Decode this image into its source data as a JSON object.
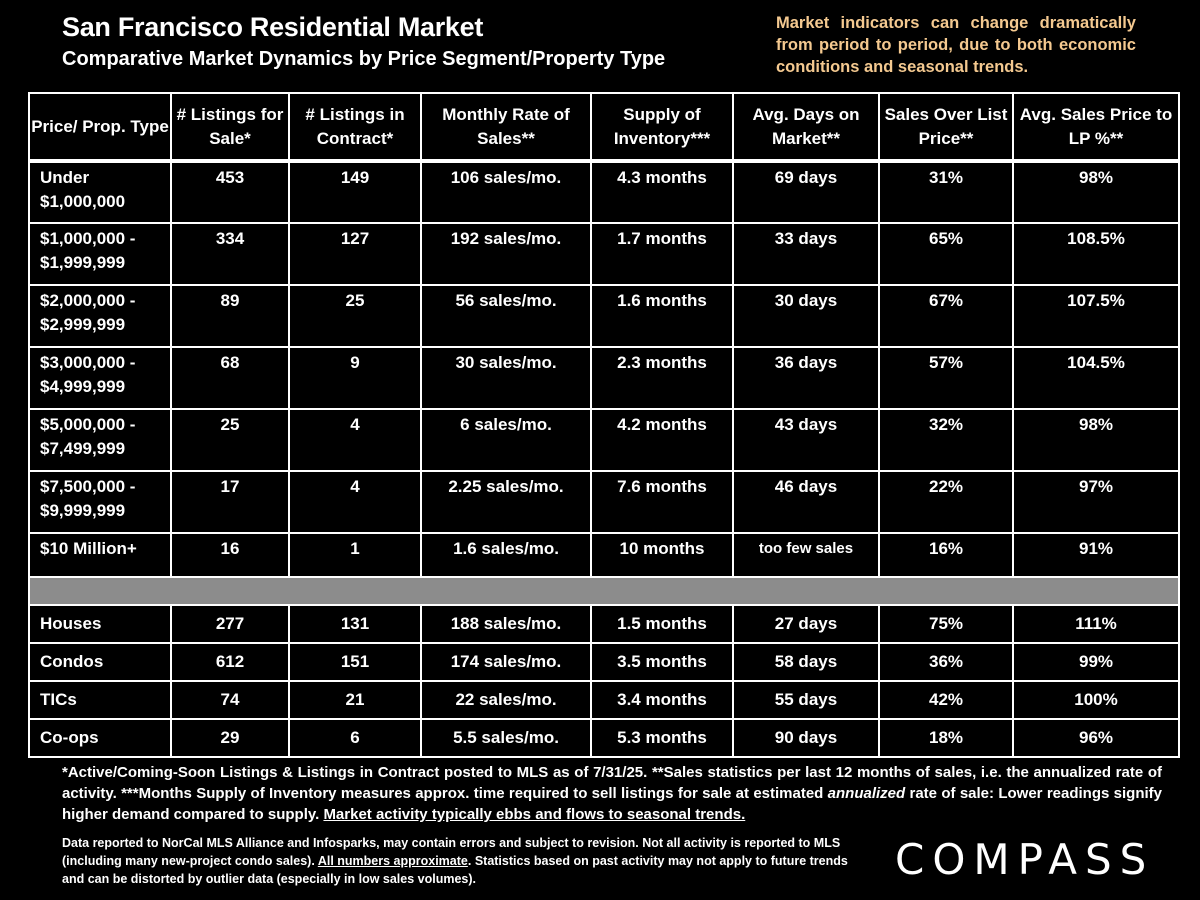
{
  "header": {
    "title": "San Francisco Residential Market",
    "subtitle": "Comparative Market Dynamics by Price Segment/Property Type",
    "note": "Market indicators can change dramatically from period to period, due to both economic conditions and seasonal trends."
  },
  "table": {
    "columns": [
      "Price/ Prop. Type",
      "# Listings for Sale*",
      "# Listings in Contract*",
      "Monthly Rate of Sales**",
      "Supply of Inventory***",
      "Avg. Days on Market**",
      "Sales Over List Price**",
      "Avg. Sales Price to LP %**"
    ],
    "segments": [
      {
        "l1": "Under",
        "l2": "$1,000,000",
        "listings": "453",
        "contract": "149",
        "rate": "106 sales/mo.",
        "supply": "4.3 months",
        "dom": "69 days",
        "over": "31%",
        "lp": "98%"
      },
      {
        "l1": "$1,000,000 -",
        "l2": "$1,999,999",
        "listings": "334",
        "contract": "127",
        "rate": "192 sales/mo.",
        "supply": "1.7 months",
        "dom": "33 days",
        "over": "65%",
        "lp": "108.5%"
      },
      {
        "l1": "$2,000,000 -",
        "l2": "$2,999,999",
        "listings": "89",
        "contract": "25",
        "rate": "56 sales/mo.",
        "supply": "1.6 months",
        "dom": "30 days",
        "over": "67%",
        "lp": "107.5%"
      },
      {
        "l1": "$3,000,000 -",
        "l2": "$4,999,999",
        "listings": "68",
        "contract": "9",
        "rate": "30 sales/mo.",
        "supply": "2.3 months",
        "dom": "36 days",
        "over": "57%",
        "lp": "104.5%"
      },
      {
        "l1": "$5,000,000 -",
        "l2": "$7,499,999",
        "listings": "25",
        "contract": "4",
        "rate": "6 sales/mo.",
        "supply": "4.2 months",
        "dom": "43 days",
        "over": "32%",
        "lp": "98%"
      },
      {
        "l1": "$7,500,000 -",
        "l2": "$9,999,999",
        "listings": "17",
        "contract": "4",
        "rate": "2.25 sales/mo.",
        "supply": "7.6 months",
        "dom": "46 days",
        "over": "22%",
        "lp": "97%"
      },
      {
        "l1": "$10 Million+",
        "l2": "",
        "listings": "16",
        "contract": "1",
        "rate": "1.6 sales/mo.",
        "supply": "10 months",
        "dom": "too few sales",
        "over": "16%",
        "lp": "91%"
      }
    ],
    "types": [
      {
        "l1": "Houses",
        "listings": "277",
        "contract": "131",
        "rate": "188 sales/mo.",
        "supply": "1.5 months",
        "dom": "27 days",
        "over": "75%",
        "lp": "111%"
      },
      {
        "l1": "Condos",
        "listings": "612",
        "contract": "151",
        "rate": "174 sales/mo.",
        "supply": "3.5 months",
        "dom": "58 days",
        "over": "36%",
        "lp": "99%"
      },
      {
        "l1": "TICs",
        "listings": "74",
        "contract": "21",
        "rate": "22 sales/mo.",
        "supply": "3.4 months",
        "dom": "55 days",
        "over": "42%",
        "lp": "100%"
      },
      {
        "l1": "Co-ops",
        "listings": "29",
        "contract": "6",
        "rate": "5.5 sales/mo.",
        "supply": "5.3 months",
        "dom": "90 days",
        "over": "18%",
        "lp": "96%"
      }
    ]
  },
  "footnotes": {
    "f1a": "*Active/Coming-Soon Listings & Listings in Contract posted to MLS as of 7/31/25. **Sales statistics per last 12 months of sales, i.e. the annualized rate of activity.  ***Months Supply of Inventory measures approx. time required to sell listings for sale at estimated ",
    "f1b": "annualized",
    "f1c": " rate of sale:  Lower readings signify higher demand compared to supply. ",
    "f1d": "Market activity typically ebbs and flows to seasonal trends.",
    "f2a": "Data reported to NorCal MLS Alliance and Infosparks, may contain errors and subject to revision.  Not all activity is reported to MLS (including many new-project condo sales). ",
    "f2b": "All numbers approximate",
    "f2c": ". Statistics based on past activity may not apply to future trends and can be distorted by outlier data (especially in low sales volumes)."
  },
  "brand": {
    "logo_text": "COMPASS"
  }
}
